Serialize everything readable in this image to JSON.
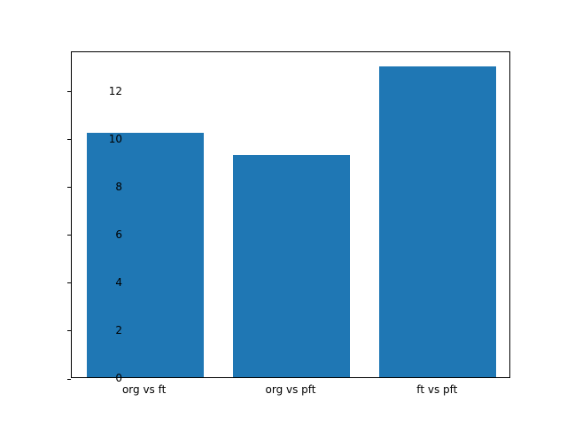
{
  "chart_data": {
    "type": "bar",
    "title": "",
    "xlabel": "",
    "ylabel": "",
    "categories": [
      "org vs ft",
      "org vs pft",
      "ft vs pft"
    ],
    "values": [
      10.2,
      9.3,
      13.0
    ],
    "bar_color": "#1f77b4",
    "ylim": [
      0,
      13.65
    ],
    "yticks": [
      0,
      2,
      4,
      6,
      8,
      10,
      12
    ],
    "grid": false,
    "legend": null
  }
}
